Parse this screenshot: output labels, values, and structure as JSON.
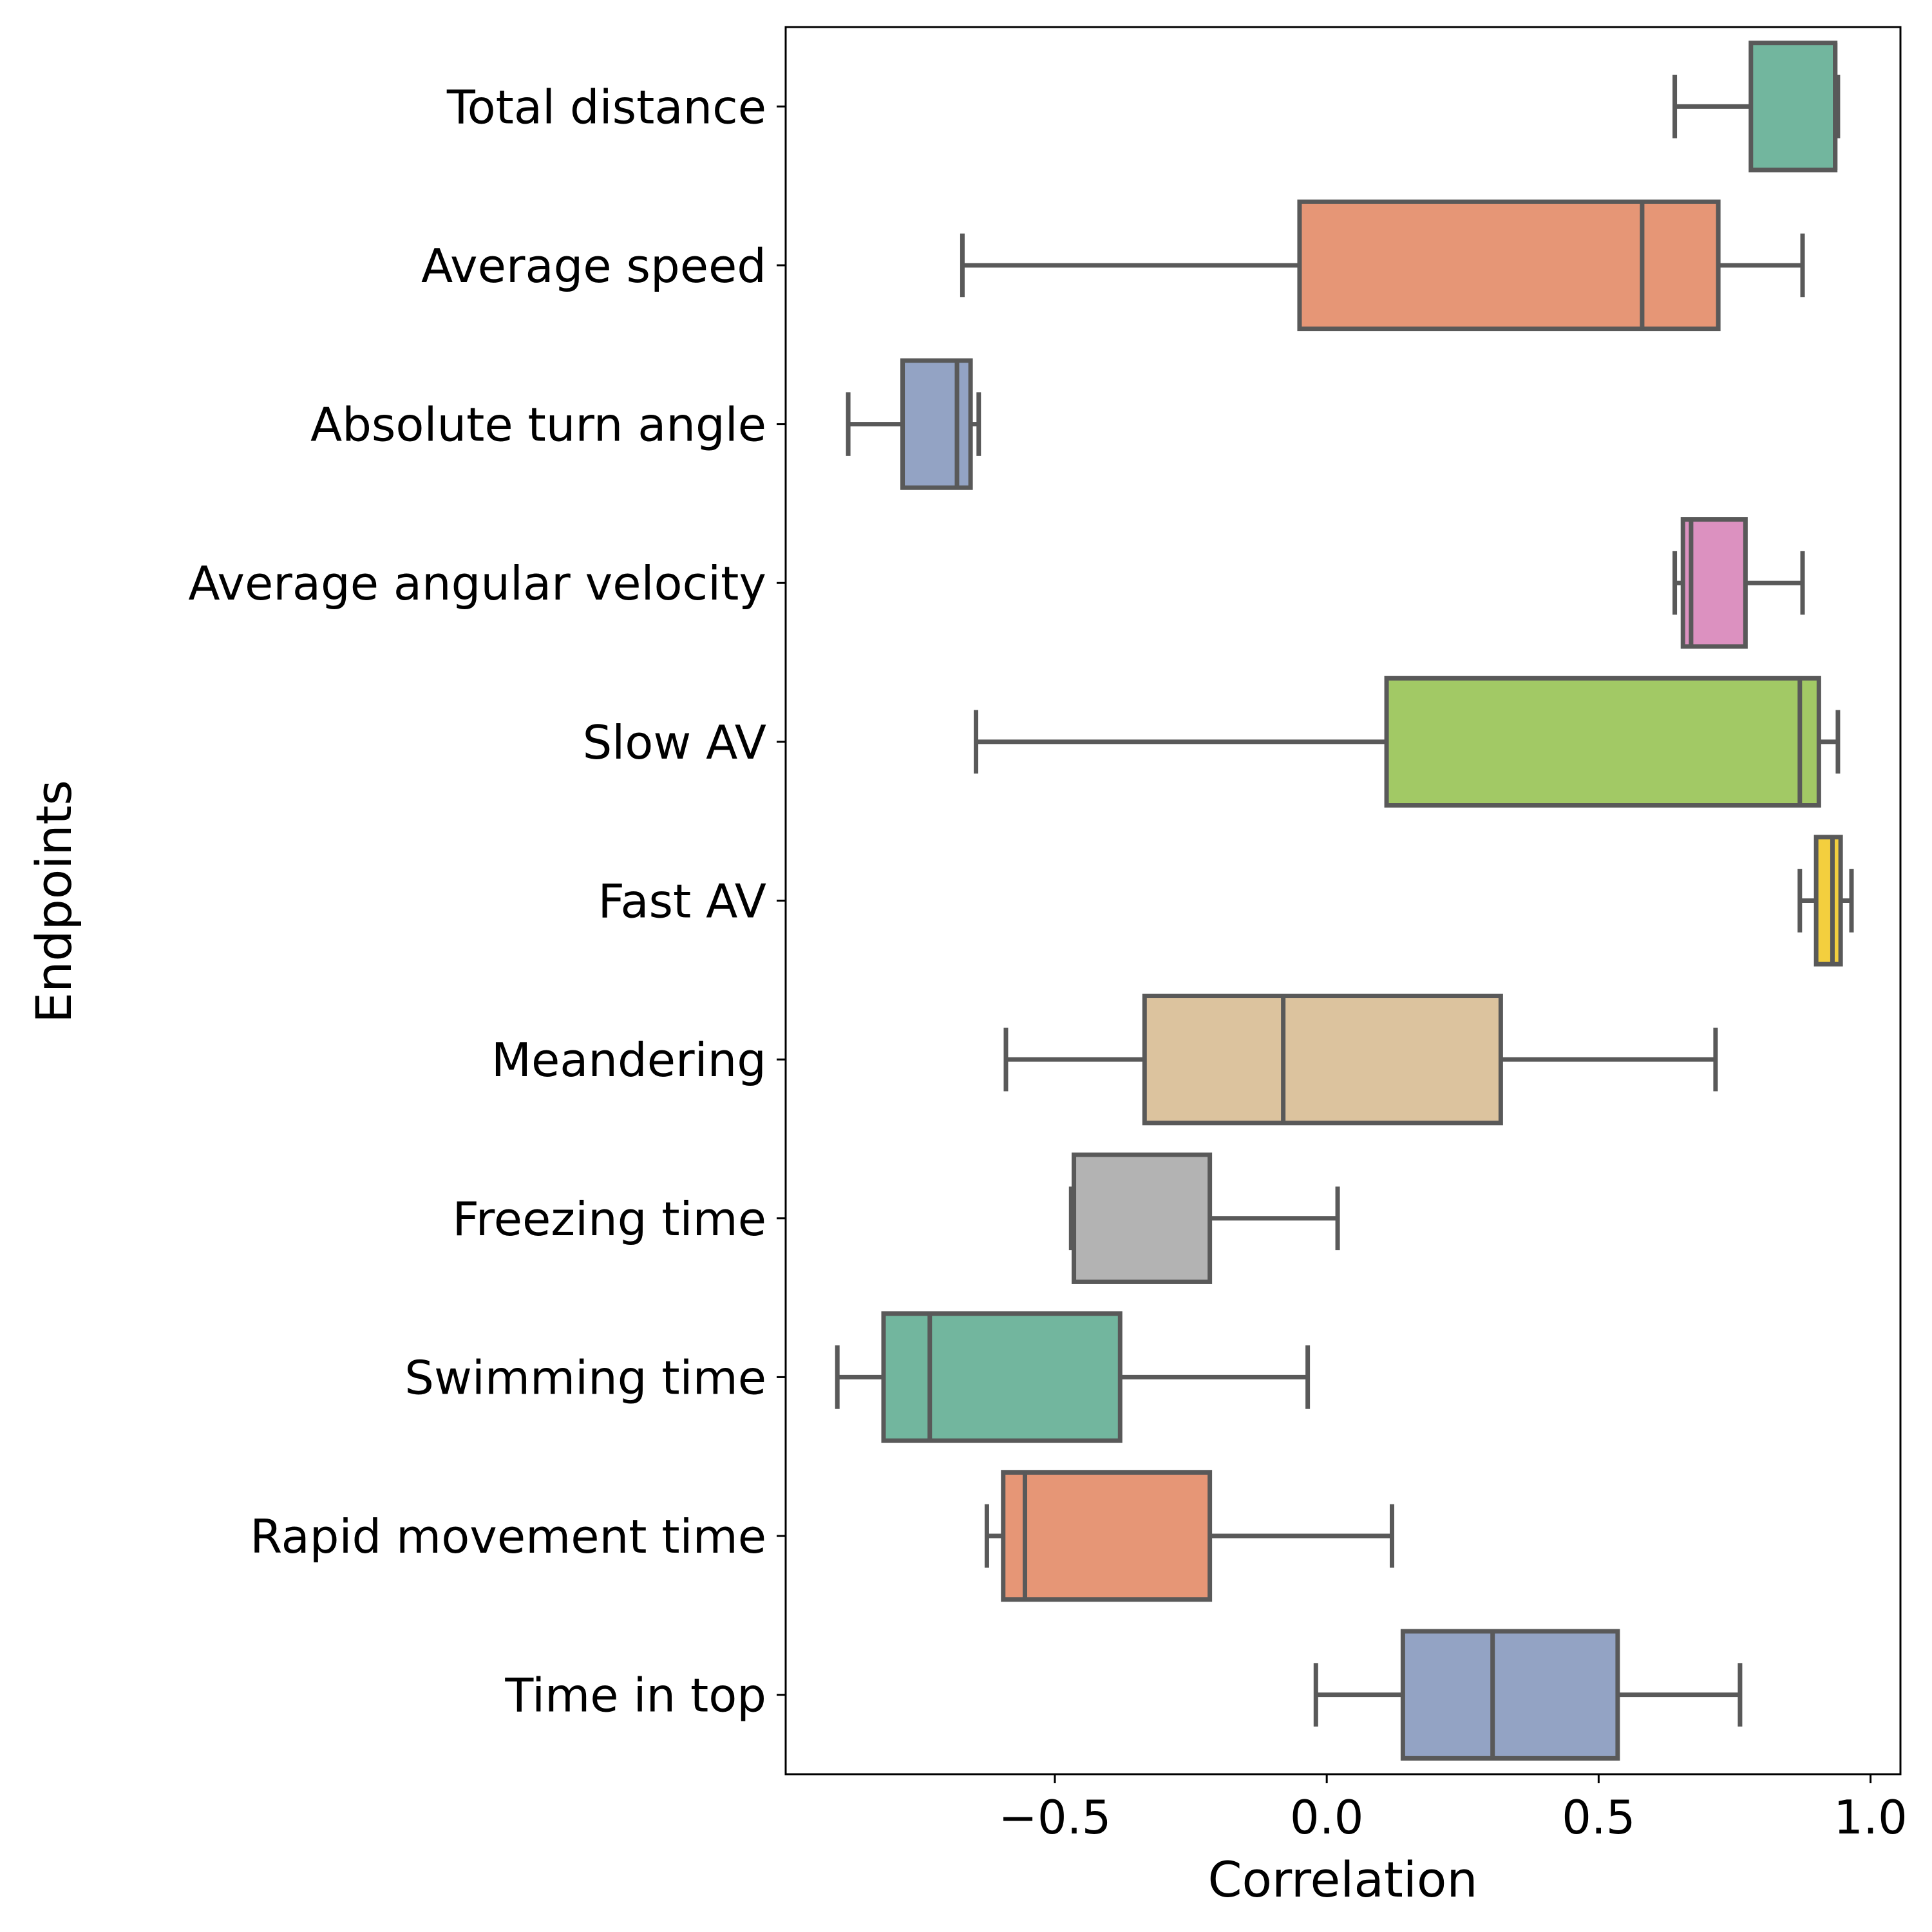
{
  "chart_data": {
    "type": "box",
    "orientation": "horizontal",
    "xlabel": "Correlation",
    "ylabel": "Endpoints",
    "xlim": [
      -0.995,
      1.055
    ],
    "xticks": [
      -0.5,
      0.0,
      0.5,
      1.0
    ],
    "xtick_labels": [
      "−0.5",
      "0.0",
      "0.5",
      "1.0"
    ],
    "grid": false,
    "legend": false,
    "box_edge_color": "#595959",
    "categories": [
      {
        "label": "Total distance",
        "color": "#72b69e",
        "whisker_low": 0.64,
        "q1": 0.78,
        "median": 0.935,
        "q3": 0.935,
        "whisker_high": 0.94
      },
      {
        "label": "Average speed",
        "color": "#e69676",
        "whisker_low": -0.67,
        "q1": -0.05,
        "median": 0.58,
        "q3": 0.72,
        "whisker_high": 0.875
      },
      {
        "label": "Absolute turn angle",
        "color": "#93a3c4",
        "whisker_low": -0.88,
        "q1": -0.78,
        "median": -0.68,
        "q3": -0.655,
        "whisker_high": -0.64
      },
      {
        "label": "Average angular velocity",
        "color": "#dc91c0",
        "whisker_low": 0.64,
        "q1": 0.655,
        "median": 0.67,
        "q3": 0.77,
        "whisker_high": 0.875
      },
      {
        "label": "Slow AV",
        "color": "#a2c965",
        "whisker_low": -0.645,
        "q1": 0.11,
        "median": 0.87,
        "q3": 0.905,
        "whisker_high": 0.94
      },
      {
        "label": "Fast AV",
        "color": "#f3cf3e",
        "whisker_low": 0.87,
        "q1": 0.9,
        "median": 0.93,
        "q3": 0.945,
        "whisker_high": 0.965
      },
      {
        "label": "Meandering",
        "color": "#dcc39e",
        "whisker_low": -0.59,
        "q1": -0.335,
        "median": -0.08,
        "q3": 0.32,
        "whisker_high": 0.715
      },
      {
        "label": "Freezing time",
        "color": "#b3b3b3",
        "whisker_low": -0.47,
        "q1": -0.465,
        "median": -0.465,
        "q3": -0.215,
        "whisker_high": 0.02
      },
      {
        "label": "Swimming time",
        "color": "#72b69e",
        "whisker_low": -0.9,
        "q1": -0.815,
        "median": -0.73,
        "q3": -0.38,
        "whisker_high": -0.035
      },
      {
        "label": "Rapid movement time",
        "color": "#e69676",
        "whisker_low": -0.625,
        "q1": -0.595,
        "median": -0.555,
        "q3": -0.215,
        "whisker_high": 0.12
      },
      {
        "label": "Time in top",
        "color": "#93a3c4",
        "whisker_low": -0.02,
        "q1": 0.14,
        "median": 0.305,
        "q3": 0.535,
        "whisker_high": 0.76
      }
    ]
  }
}
